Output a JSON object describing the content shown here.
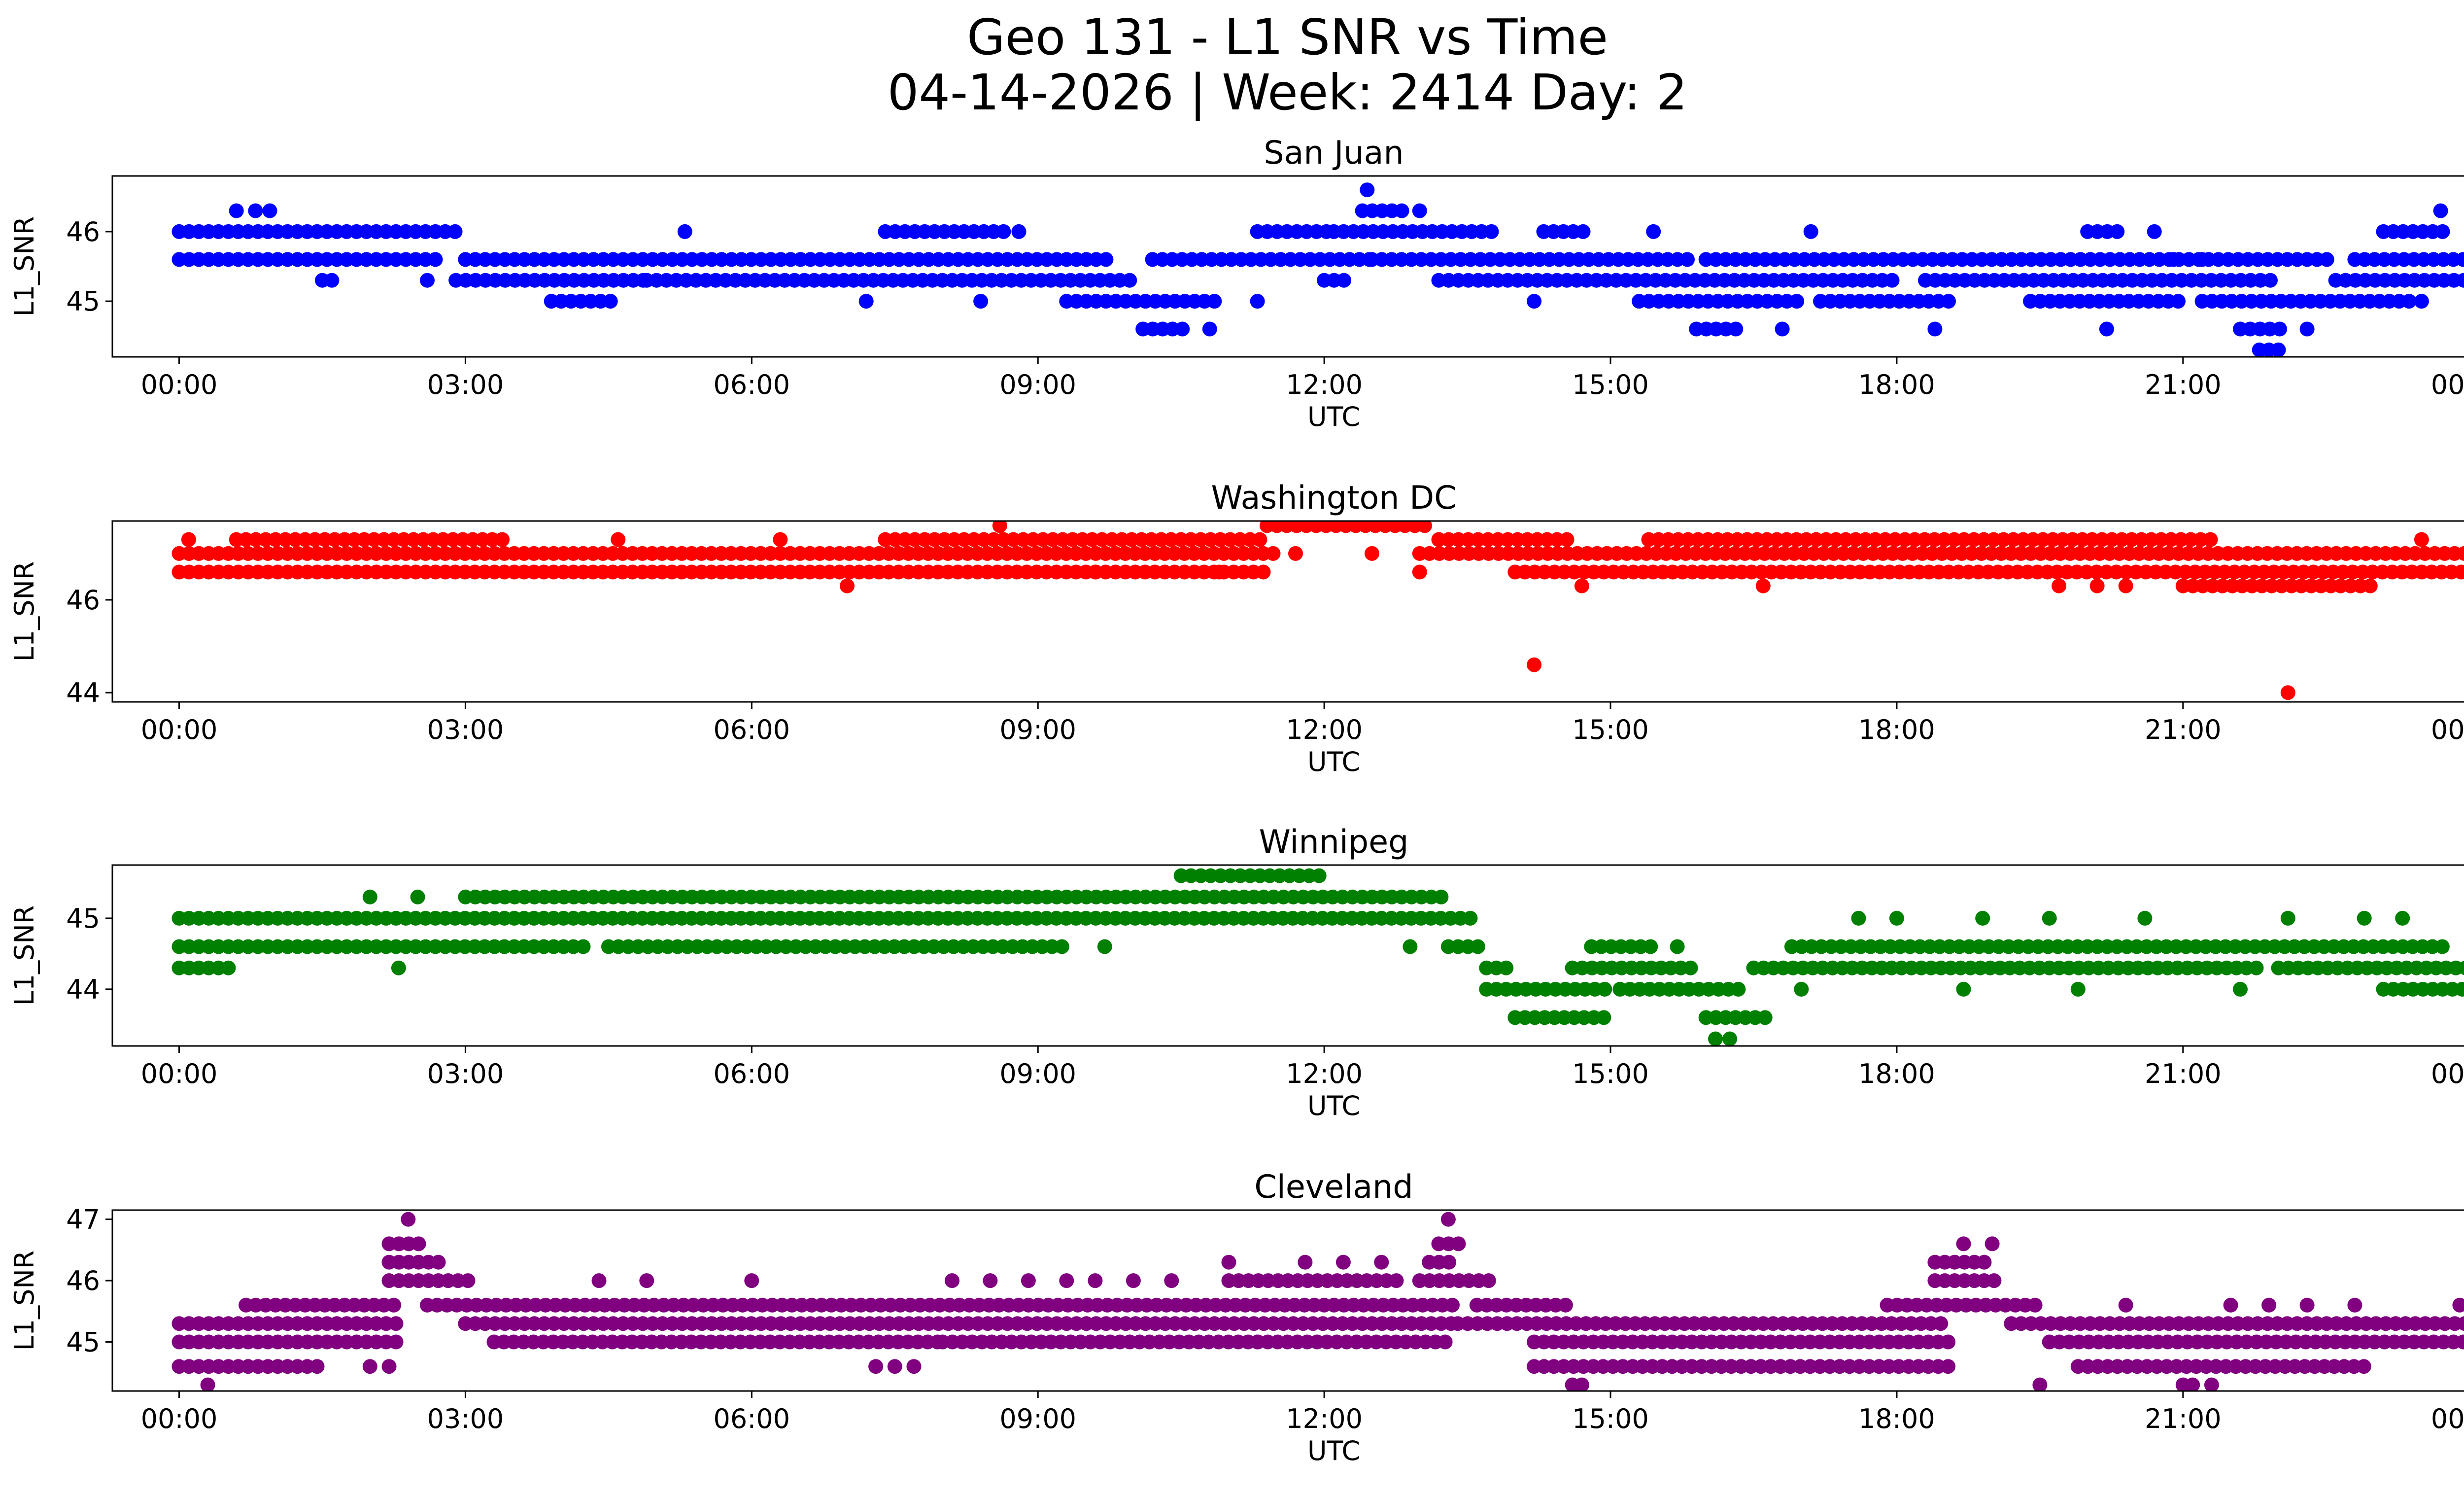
{
  "header": {
    "line1": "Geo 131 - L1 SNR vs Time",
    "line2": "04-14-2026 | Week: 2414 Day: 2"
  },
  "chart_data": [
    {
      "type": "scatter",
      "title": "San Juan",
      "xlabel": "UTC",
      "ylabel": "L1_SNR",
      "color": "#0000ff",
      "xlim": [
        -0.7,
        24.9
      ],
      "ylim": [
        44.2,
        46.8
      ],
      "xticks": [
        0,
        3,
        6,
        9,
        12,
        15,
        18,
        21,
        24
      ],
      "xtick_labels": [
        "00:00",
        "03:00",
        "06:00",
        "09:00",
        "12:00",
        "15:00",
        "18:00",
        "21:00",
        "00:00"
      ],
      "yticks": [
        45,
        46
      ],
      "bands": [
        {
          "y": 45.6,
          "segments": [
            [
              0.0,
              2.7
            ],
            [
              3.0,
              9.8
            ],
            [
              10.2,
              12.5
            ],
            [
              12.5,
              15.9
            ],
            [
              16.0,
              22.6
            ],
            [
              22.8,
              24.0
            ]
          ]
        },
        {
          "y": 45.3,
          "segments": [
            [
              2.9,
              4.9
            ],
            [
              4.9,
              10.0
            ],
            [
              12.0,
              12.3
            ],
            [
              13.2,
              18.0
            ],
            [
              18.3,
              22.0
            ],
            [
              22.6,
              24.0
            ]
          ]
        },
        {
          "y": 46.0,
          "segments": [
            [
              0.0,
              2.9
            ],
            [
              7.4,
              8.7
            ],
            [
              11.3,
              12.1
            ],
            [
              12.1,
              13.8
            ],
            [
              14.3,
              14.8
            ],
            [
              20.0,
              20.4
            ],
            [
              23.1,
              23.8
            ]
          ]
        },
        {
          "y": 45.0,
          "segments": [
            [
              3.9,
              4.6
            ],
            [
              9.3,
              10.9
            ],
            [
              15.3,
              17.0
            ],
            [
              17.2,
              18.6
            ],
            [
              19.4,
              21.0
            ],
            [
              21.2,
              23.4
            ]
          ]
        },
        {
          "y": 44.6,
          "segments": [
            [
              10.1,
              10.6
            ],
            [
              15.9,
              16.4
            ],
            [
              21.6,
              22.1
            ]
          ]
        },
        {
          "y": 46.3,
          "segments": [
            [
              12.4,
              12.9
            ]
          ]
        }
      ],
      "points": [
        [
          0.6,
          46.3
        ],
        [
          0.8,
          46.3
        ],
        [
          0.95,
          46.3
        ],
        [
          1.5,
          45.3
        ],
        [
          1.6,
          45.3
        ],
        [
          2.6,
          45.3
        ],
        [
          5.3,
          46.0
        ],
        [
          7.2,
          45.0
        ],
        [
          8.8,
          46.0
        ],
        [
          8.4,
          45.0
        ],
        [
          10.8,
          44.6
        ],
        [
          11.3,
          45.0
        ],
        [
          12.45,
          46.6
        ],
        [
          13.0,
          46.3
        ],
        [
          14.2,
          45.0
        ],
        [
          15.45,
          46.0
        ],
        [
          16.8,
          44.6
        ],
        [
          17.1,
          46.0
        ],
        [
          18.4,
          44.6
        ],
        [
          20.2,
          44.6
        ],
        [
          20.7,
          46.0
        ],
        [
          20.9,
          45.6
        ],
        [
          21.2,
          45.6
        ],
        [
          21.8,
          44.3
        ],
        [
          21.9,
          44.3
        ],
        [
          22.0,
          44.3
        ],
        [
          22.3,
          44.6
        ],
        [
          23.5,
          45.0
        ],
        [
          23.7,
          46.3
        ]
      ]
    },
    {
      "type": "scatter",
      "title": "Washington DC",
      "xlabel": "UTC",
      "ylabel": "L1_SNR",
      "color": "#ff0000",
      "xlim": [
        -0.7,
        24.9
      ],
      "ylim": [
        43.8,
        47.7
      ],
      "xticks": [
        0,
        3,
        6,
        9,
        12,
        15,
        18,
        21,
        24
      ],
      "xtick_labels": [
        "00:00",
        "03:00",
        "06:00",
        "09:00",
        "12:00",
        "15:00",
        "18:00",
        "21:00",
        "00:00"
      ],
      "yticks": [
        44,
        46
      ],
      "bands": [
        {
          "y": 47.0,
          "segments": [
            [
              0.0,
              11.5
            ],
            [
              13.0,
              24.0
            ]
          ]
        },
        {
          "y": 46.6,
          "segments": [
            [
              0.0,
              11.4
            ],
            [
              14.0,
              24.0
            ]
          ]
        },
        {
          "y": 47.3,
          "segments": [
            [
              0.7,
              3.4
            ],
            [
              7.4,
              11.4
            ],
            [
              13.2,
              14.6
            ],
            [
              15.4,
              21.3
            ]
          ]
        },
        {
          "y": 47.6,
          "segments": [
            [
              11.4,
              13.1
            ]
          ]
        },
        {
          "y": 46.3,
          "segments": [
            [
              21.0,
              23.0
            ]
          ]
        }
      ],
      "points": [
        [
          0.1,
          47.3
        ],
        [
          0.6,
          47.3
        ],
        [
          4.6,
          47.3
        ],
        [
          6.3,
          47.3
        ],
        [
          7.0,
          46.3
        ],
        [
          8.6,
          47.6
        ],
        [
          9.6,
          46.6
        ],
        [
          10.9,
          46.6
        ],
        [
          11.7,
          47.0
        ],
        [
          12.5,
          47.0
        ],
        [
          13.0,
          46.6
        ],
        [
          14.2,
          44.6
        ],
        [
          14.7,
          46.3
        ],
        [
          16.6,
          46.3
        ],
        [
          19.7,
          46.3
        ],
        [
          20.1,
          46.3
        ],
        [
          20.4,
          46.3
        ],
        [
          23.5,
          47.3
        ],
        [
          22.1,
          44.0
        ]
      ]
    },
    {
      "type": "scatter",
      "title": "Winnipeg",
      "xlabel": "UTC",
      "ylabel": "L1_SNR",
      "color": "#008000",
      "xlim": [
        -0.7,
        24.9
      ],
      "ylim": [
        43.2,
        45.75
      ],
      "xticks": [
        0,
        3,
        6,
        9,
        12,
        15,
        18,
        21,
        24
      ],
      "xtick_labels": [
        "00:00",
        "03:00",
        "06:00",
        "09:00",
        "12:00",
        "15:00",
        "18:00",
        "21:00",
        "00:00"
      ],
      "yticks": [
        44,
        45
      ],
      "bands": [
        {
          "y": 44.6,
          "segments": [
            [
              0.0,
              4.3
            ],
            [
              4.5,
              9.3
            ],
            [
              13.3,
              13.7
            ],
            [
              14.8,
              15.5
            ],
            [
              16.9,
              23.8
            ]
          ]
        },
        {
          "y": 45.0,
          "segments": [
            [
              0.0,
              13.6
            ]
          ]
        },
        {
          "y": 45.3,
          "segments": [
            [
              3.0,
              13.3
            ]
          ]
        },
        {
          "y": 44.3,
          "segments": [
            [
              0.0,
              0.6
            ],
            [
              13.7,
              14.0
            ],
            [
              14.6,
              15.9
            ],
            [
              16.5,
              21.8
            ],
            [
              22.0,
              24.0
            ]
          ]
        },
        {
          "y": 44.0,
          "segments": [
            [
              13.7,
              15.0
            ],
            [
              15.1,
              16.4
            ],
            [
              23.1,
              24.0
            ]
          ]
        },
        {
          "y": 43.6,
          "segments": [
            [
              14.0,
              15.0
            ],
            [
              16.0,
              16.7
            ]
          ]
        },
        {
          "y": 45.6,
          "segments": [
            [
              10.5,
              12.0
            ]
          ]
        }
      ],
      "points": [
        [
          2.0,
          45.3
        ],
        [
          2.5,
          45.3
        ],
        [
          2.3,
          44.3
        ],
        [
          9.7,
          44.6
        ],
        [
          12.9,
          44.6
        ],
        [
          15.7,
          44.6
        ],
        [
          16.1,
          43.3
        ],
        [
          16.25,
          43.3
        ],
        [
          17.0,
          44.0
        ],
        [
          17.6,
          45.0
        ],
        [
          18.0,
          45.0
        ],
        [
          18.7,
          44.0
        ],
        [
          18.9,
          45.0
        ],
        [
          19.9,
          44.0
        ],
        [
          19.6,
          45.0
        ],
        [
          20.6,
          45.0
        ],
        [
          21.6,
          44.0
        ],
        [
          22.1,
          45.0
        ],
        [
          22.9,
          45.0
        ],
        [
          23.3,
          45.0
        ]
      ]
    },
    {
      "type": "scatter",
      "title": "Cleveland",
      "xlabel": "UTC",
      "ylabel": "L1_SNR",
      "color": "#800080",
      "xlim": [
        -0.7,
        24.9
      ],
      "ylim": [
        44.2,
        47.15
      ],
      "xticks": [
        0,
        3,
        6,
        9,
        12,
        15,
        18,
        21,
        24
      ],
      "xtick_labels": [
        "00:00",
        "03:00",
        "06:00",
        "09:00",
        "12:00",
        "15:00",
        "18:00",
        "21:00",
        "00:00"
      ],
      "yticks": [
        45,
        46,
        47
      ],
      "bands": [
        {
          "y": 45.3,
          "segments": [
            [
              0.0,
              2.3
            ],
            [
              3.0,
              13.4
            ],
            [
              13.4,
              18.5
            ],
            [
              19.2,
              24.0
            ]
          ]
        },
        {
          "y": 45.0,
          "segments": [
            [
              0.0,
              2.3
            ],
            [
              3.3,
              8.0
            ],
            [
              8.0,
              13.3
            ],
            [
              14.2,
              18.6
            ],
            [
              19.6,
              24.0
            ]
          ]
        },
        {
          "y": 45.6,
          "segments": [
            [
              0.7,
              2.3
            ],
            [
              2.6,
              13.4
            ],
            [
              13.6,
              14.6
            ],
            [
              17.9,
              19.5
            ]
          ]
        },
        {
          "y": 44.6,
          "segments": [
            [
              0.0,
              1.5
            ],
            [
              14.2,
              18.6
            ],
            [
              19.9,
              22.9
            ]
          ]
        },
        {
          "y": 46.0,
          "segments": [
            [
              2.2,
              3.1
            ],
            [
              11.0,
              12.8
            ],
            [
              13.0,
              13.8
            ],
            [
              18.4,
              19.1
            ]
          ]
        },
        {
          "y": 46.3,
          "segments": [
            [
              2.2,
              2.8
            ],
            [
              13.1,
              13.4
            ],
            [
              18.4,
              19.0
            ]
          ]
        },
        {
          "y": 46.6,
          "segments": [
            [
              2.2,
              2.6
            ],
            [
              13.2,
              13.5
            ]
          ]
        }
      ],
      "points": [
        [
          0.3,
          44.3
        ],
        [
          2.4,
          47.0
        ],
        [
          2.0,
          44.6
        ],
        [
          2.2,
          44.6
        ],
        [
          4.4,
          46.0
        ],
        [
          4.9,
          46.0
        ],
        [
          6.0,
          46.0
        ],
        [
          7.3,
          44.6
        ],
        [
          7.5,
          44.6
        ],
        [
          7.7,
          44.6
        ],
        [
          8.1,
          46.0
        ],
        [
          8.5,
          46.0
        ],
        [
          8.9,
          46.0
        ],
        [
          9.3,
          46.0
        ],
        [
          9.6,
          46.0
        ],
        [
          10.0,
          46.0
        ],
        [
          10.4,
          46.0
        ],
        [
          11.0,
          46.3
        ],
        [
          11.3,
          45.0
        ],
        [
          11.8,
          46.3
        ],
        [
          12.2,
          46.3
        ],
        [
          12.6,
          46.3
        ],
        [
          13.3,
          47.0
        ],
        [
          14.6,
          44.3
        ],
        [
          14.7,
          44.3
        ],
        [
          18.7,
          46.6
        ],
        [
          19.0,
          46.6
        ],
        [
          19.5,
          44.3
        ],
        [
          20.4,
          45.6
        ],
        [
          21.0,
          44.3
        ],
        [
          21.1,
          44.3
        ],
        [
          21.3,
          44.3
        ],
        [
          21.5,
          45.6
        ],
        [
          21.9,
          45.6
        ],
        [
          22.3,
          45.6
        ],
        [
          22.8,
          45.6
        ],
        [
          23.9,
          45.6
        ]
      ]
    }
  ]
}
